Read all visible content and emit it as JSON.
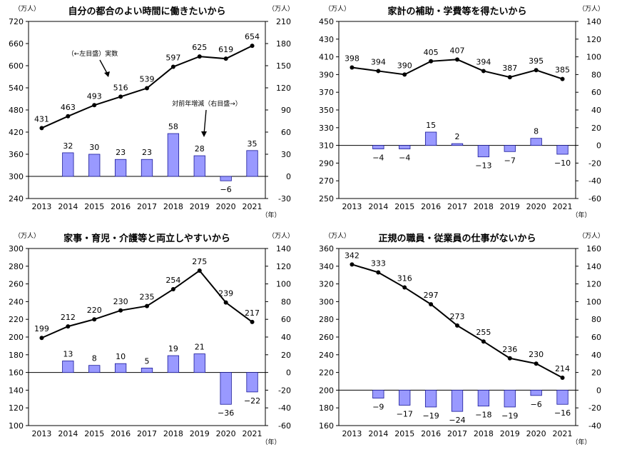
{
  "chart_data": [
    {
      "type": "bar+line",
      "title": "自分の都合のよい時間に働きたいから",
      "left_unit": "（万人）",
      "right_unit": "（万人）",
      "x_unit": "（年）",
      "categories": [
        "2013",
        "2014",
        "2015",
        "2016",
        "2017",
        "2018",
        "2019",
        "2020",
        "2021"
      ],
      "line": {
        "values": [
          431,
          463,
          493,
          516,
          539,
          597,
          625,
          619,
          654
        ],
        "axis": "left"
      },
      "bars": {
        "values": [
          null,
          32,
          30,
          23,
          23,
          58,
          28,
          -6,
          35
        ],
        "axis": "right"
      },
      "left_axis": {
        "min": 240,
        "max": 720,
        "step": 60
      },
      "right_axis": {
        "min": -30,
        "max": 210,
        "step": 30
      },
      "annotations": [
        "（←左目盛）実数",
        "対前年増減（右目盛→）"
      ]
    },
    {
      "type": "bar+line",
      "title": "家計の補助・学費等を得たいから",
      "left_unit": "（万人）",
      "right_unit": "（万人）",
      "x_unit": "（年）",
      "categories": [
        "2013",
        "2014",
        "2015",
        "2016",
        "2017",
        "2018",
        "2019",
        "2020",
        "2021"
      ],
      "line": {
        "values": [
          398,
          394,
          390,
          405,
          407,
          394,
          387,
          395,
          385
        ],
        "axis": "left"
      },
      "bars": {
        "values": [
          null,
          -4,
          -4,
          15,
          2,
          -13,
          -7,
          8,
          -10
        ],
        "axis": "right"
      },
      "left_axis": {
        "min": 250,
        "max": 450,
        "step": 20
      },
      "right_axis": {
        "min": -60,
        "max": 140,
        "step": 20
      },
      "annotations": []
    },
    {
      "type": "bar+line",
      "title": "家事・育児・介護等と両立しやすいから",
      "left_unit": "（万人）",
      "right_unit": "（万人）",
      "x_unit": "（年）",
      "categories": [
        "2013",
        "2014",
        "2015",
        "2016",
        "2017",
        "2018",
        "2019",
        "2020",
        "2021"
      ],
      "line": {
        "values": [
          199,
          212,
          220,
          230,
          235,
          254,
          275,
          239,
          217
        ],
        "axis": "left"
      },
      "bars": {
        "values": [
          null,
          13,
          8,
          10,
          5,
          19,
          21,
          -36,
          -22
        ],
        "axis": "right"
      },
      "left_axis": {
        "min": 100,
        "max": 300,
        "step": 20
      },
      "right_axis": {
        "min": -60,
        "max": 140,
        "step": 20
      },
      "annotations": []
    },
    {
      "type": "bar+line",
      "title": "正規の職員・従業員の仕事がないから",
      "left_unit": "（万人）",
      "right_unit": "（万人）",
      "x_unit": "（年）",
      "categories": [
        "2013",
        "2014",
        "2015",
        "2016",
        "2017",
        "2018",
        "2019",
        "2020",
        "2021"
      ],
      "line": {
        "values": [
          342,
          333,
          316,
          297,
          273,
          255,
          236,
          230,
          214
        ],
        "axis": "left"
      },
      "bars": {
        "values": [
          null,
          -9,
          -17,
          -19,
          -24,
          -18,
          -19,
          -6,
          -16
        ],
        "axis": "right"
      },
      "left_axis": {
        "min": 160,
        "max": 360,
        "step": 20
      },
      "right_axis": {
        "min": -40,
        "max": 160,
        "step": 20
      },
      "annotations": []
    }
  ]
}
